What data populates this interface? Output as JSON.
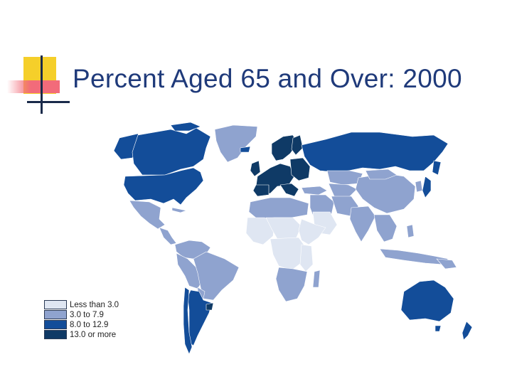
{
  "slide": {
    "title": "Percent Aged 65 and Over: 2000"
  },
  "colors": {
    "title": "#1f3a7a",
    "less_than_3": "#dfe6f2",
    "from_3_to_7_9": "#8fa3cf",
    "from_8_to_12_9": "#134d99",
    "over_13": "#0f3a66",
    "border": "#ffffff",
    "deco_yellow": "#f5cf2a",
    "deco_red": "#f26b7a",
    "deco_line": "#1a2a4a"
  },
  "legend": {
    "items": [
      {
        "label": "Less than 3.0",
        "color": "#dfe6f2"
      },
      {
        "label": "3.0 to 7.9",
        "color": "#8fa3cf"
      },
      {
        "label": "8.0 to 12.9",
        "color": "#134d99"
      },
      {
        "label": "13.0 or more",
        "color": "#0f3a66"
      }
    ]
  }
}
